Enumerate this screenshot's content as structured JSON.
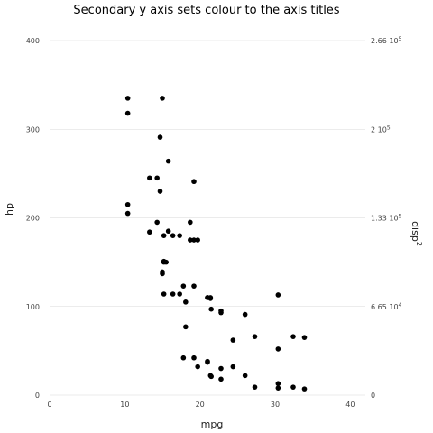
{
  "chart_data": {
    "type": "scatter",
    "title": "Secondary y axis sets colour to the axis titles",
    "xlabel": "mpg",
    "ylabel": "hp",
    "y2label": "disp",
    "y2label_superscript": "2",
    "xlim": [
      0,
      42
    ],
    "ylim": [
      0,
      400
    ],
    "grid": true,
    "x_ticks": [
      0,
      10,
      20,
      30,
      40
    ],
    "x_tick_labels": [
      "0",
      "10",
      "20",
      "30",
      "40"
    ],
    "y_ticks": [
      0,
      100,
      200,
      300,
      400
    ],
    "y_tick_labels": [
      "0",
      "100",
      "200",
      "300",
      "400"
    ],
    "y2_ticks": [
      0,
      100,
      200,
      300,
      400
    ],
    "y2_tick_labels": [
      {
        "base": "0",
        "exp": ""
      },
      {
        "base": "6.65 10",
        "exp": "4"
      },
      {
        "base": "1.33 10",
        "exp": "5"
      },
      {
        "base": "2 10",
        "exp": "5"
      },
      {
        "base": "2.66 10",
        "exp": "5"
      }
    ],
    "points": [
      {
        "x": 21.0,
        "y": 110
      },
      {
        "x": 21.0,
        "y": 110
      },
      {
        "x": 22.8,
        "y": 93
      },
      {
        "x": 21.4,
        "y": 110
      },
      {
        "x": 18.7,
        "y": 175
      },
      {
        "x": 18.1,
        "y": 105
      },
      {
        "x": 14.3,
        "y": 245
      },
      {
        "x": 24.4,
        "y": 62
      },
      {
        "x": 22.8,
        "y": 95
      },
      {
        "x": 19.2,
        "y": 123
      },
      {
        "x": 17.8,
        "y": 123
      },
      {
        "x": 16.4,
        "y": 180
      },
      {
        "x": 17.3,
        "y": 180
      },
      {
        "x": 15.2,
        "y": 180
      },
      {
        "x": 10.4,
        "y": 205
      },
      {
        "x": 10.4,
        "y": 215
      },
      {
        "x": 14.7,
        "y": 230
      },
      {
        "x": 32.4,
        "y": 66
      },
      {
        "x": 30.4,
        "y": 52
      },
      {
        "x": 33.9,
        "y": 65
      },
      {
        "x": 21.5,
        "y": 97
      },
      {
        "x": 15.5,
        "y": 150
      },
      {
        "x": 15.2,
        "y": 150
      },
      {
        "x": 13.3,
        "y": 245
      },
      {
        "x": 19.2,
        "y": 175
      },
      {
        "x": 27.3,
        "y": 66
      },
      {
        "x": 26.0,
        "y": 91
      },
      {
        "x": 30.4,
        "y": 113
      },
      {
        "x": 15.8,
        "y": 264
      },
      {
        "x": 19.7,
        "y": 175
      },
      {
        "x": 15.0,
        "y": 335
      },
      {
        "x": 21.4,
        "y": 109
      },
      {
        "x": 10.4,
        "y": 335
      },
      {
        "x": 10.4,
        "y": 318
      },
      {
        "x": 14.7,
        "y": 291
      },
      {
        "x": 19.2,
        "y": 241
      },
      {
        "x": 14.3,
        "y": 195
      },
      {
        "x": 18.7,
        "y": 195
      },
      {
        "x": 13.3,
        "y": 184
      },
      {
        "x": 15.8,
        "y": 185
      },
      {
        "x": 15.2,
        "y": 151
      },
      {
        "x": 15.0,
        "y": 137
      },
      {
        "x": 15.0,
        "y": 139
      },
      {
        "x": 15.2,
        "y": 114
      },
      {
        "x": 16.4,
        "y": 114
      },
      {
        "x": 17.3,
        "y": 114
      },
      {
        "x": 18.1,
        "y": 77
      },
      {
        "x": 17.8,
        "y": 42
      },
      {
        "x": 19.2,
        "y": 42
      },
      {
        "x": 19.7,
        "y": 32
      },
      {
        "x": 21.0,
        "y": 38
      },
      {
        "x": 21.0,
        "y": 37
      },
      {
        "x": 21.4,
        "y": 22
      },
      {
        "x": 21.5,
        "y": 21
      },
      {
        "x": 22.8,
        "y": 30
      },
      {
        "x": 22.8,
        "y": 18
      },
      {
        "x": 24.4,
        "y": 32
      },
      {
        "x": 26.0,
        "y": 22
      },
      {
        "x": 27.3,
        "y": 9
      },
      {
        "x": 30.4,
        "y": 13
      },
      {
        "x": 30.4,
        "y": 8
      },
      {
        "x": 32.4,
        "y": 9
      },
      {
        "x": 33.9,
        "y": 7
      }
    ]
  }
}
